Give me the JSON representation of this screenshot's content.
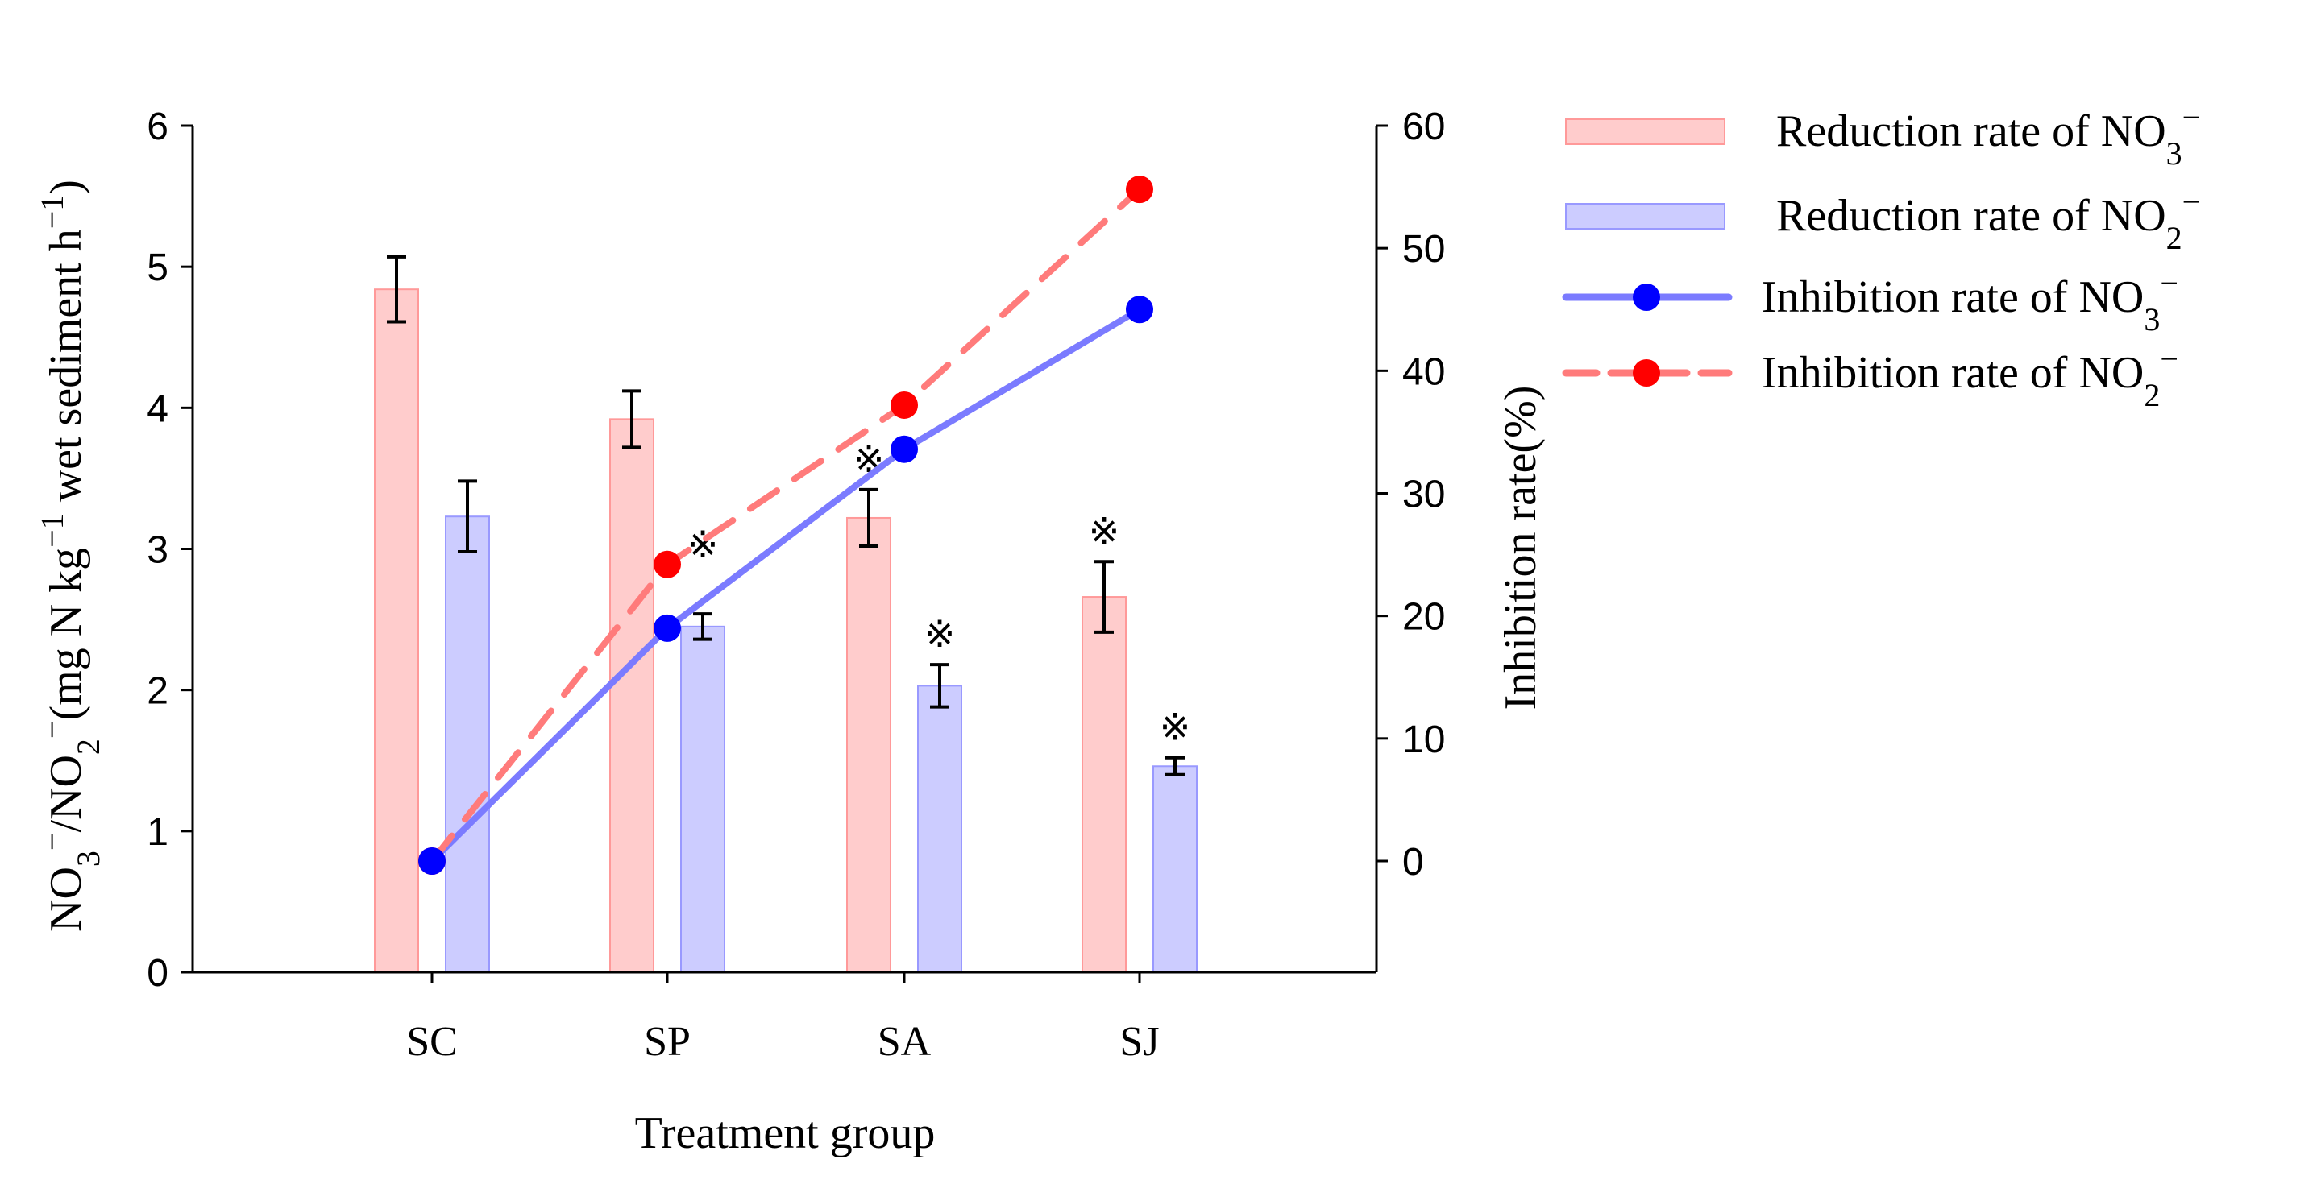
{
  "chart_data": {
    "type": "bar",
    "categories": [
      "SC",
      "SP",
      "SA",
      "SJ"
    ],
    "xlabel": "Treatment group",
    "ylabel_parts": [
      {
        "t": "NO"
      },
      {
        "t": "3",
        "sub": true
      },
      {
        "t": "−",
        "sup": true
      },
      {
        "t": "/NO"
      },
      {
        "t": "2",
        "sub": true
      },
      {
        "t": "−",
        "sup": true
      },
      {
        "t": "(mg N kg"
      },
      {
        "t": "−1",
        "sup": true
      },
      {
        "t": " wet sediment h"
      },
      {
        "t": "−1",
        "sup": true
      },
      {
        "t": ")"
      }
    ],
    "y2label": "Inhibition rate(%)",
    "ylim": [
      0,
      6
    ],
    "yticks": [
      0,
      1,
      2,
      3,
      4,
      5,
      6
    ],
    "y2lim": [
      0,
      60
    ],
    "y2ticks": [
      0,
      10,
      20,
      30,
      40,
      50,
      60
    ],
    "bar_series": [
      {
        "name": "Reduction rate of NO3−",
        "label": "Reduction rate of NO",
        "sub": "3",
        "sup": "−",
        "values": [
          4.84,
          3.92,
          3.22,
          2.66
        ],
        "errors": [
          0.23,
          0.2,
          0.2,
          0.25
        ],
        "significant": [
          false,
          false,
          true,
          true
        ],
        "fill": "#ffcccc",
        "stroke": "#ff9999"
      },
      {
        "name": "Reduction rate of NO2−",
        "label": "Reduction rate of NO",
        "sub": "2",
        "sup": "−",
        "values": [
          3.23,
          2.45,
          2.03,
          1.46
        ],
        "errors": [
          0.25,
          0.09,
          0.15,
          0.06
        ],
        "significant": [
          false,
          true,
          true,
          true
        ],
        "fill": "#ccccff",
        "stroke": "#9999ff"
      }
    ],
    "line_series": [
      {
        "name": "Inhibition rate of NO3−",
        "label": "Inhibition rate of NO",
        "sub": "3",
        "sup": "−",
        "values": [
          0,
          19.0,
          33.6,
          45.0
        ],
        "line": "#7b7bff",
        "marker": "#0000ff",
        "dashed": false
      },
      {
        "name": "Inhibition rate of NO2−",
        "label": "Inhibition rate of NO",
        "sub": "2",
        "sup": "−",
        "values": [
          0,
          24.2,
          37.2,
          54.8
        ],
        "line": "#ff7b7b",
        "marker": "#ff0000",
        "dashed": true
      }
    ],
    "significance_mark": "※",
    "legend_position": "top-right",
    "grid": false
  }
}
